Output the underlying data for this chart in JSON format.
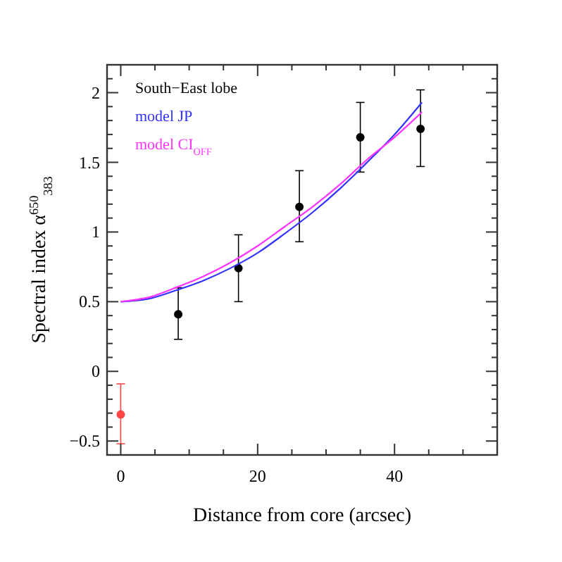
{
  "chart_data": {
    "type": "scatter",
    "xlabel": "Distance from core (arcsec)",
    "ylabel": "Spectral index α$^{650}$$_{383}$",
    "xlim": [
      -2,
      55
    ],
    "ylim": [
      -0.6,
      2.2
    ],
    "xticks": [
      0,
      {
        "value": 5,
        "label": null
      },
      {
        "value": 10,
        "label": null
      },
      {
        "value": 15,
        "label": null
      },
      20,
      {
        "value": 25,
        "label": null
      },
      {
        "value": 30,
        "label": null
      },
      {
        "value": 35,
        "label": null
      },
      40,
      {
        "value": 45,
        "label": null
      },
      {
        "value": 50,
        "label": null
      }
    ],
    "yticks": [
      -0.5,
      {
        "value": -0.4,
        "label": null
      },
      {
        "value": -0.3,
        "label": null
      },
      {
        "value": -0.2,
        "label": null
      },
      {
        "value": -0.1,
        "label": null
      },
      0,
      {
        "value": 0.1,
        "label": null
      },
      {
        "value": 0.2,
        "label": null
      },
      {
        "value": 0.3,
        "label": null
      },
      {
        "value": 0.4,
        "label": null
      },
      0.5,
      {
        "value": 0.6,
        "label": null
      },
      {
        "value": 0.7,
        "label": null
      },
      {
        "value": 0.8,
        "label": null
      },
      {
        "value": 0.9,
        "label": null
      },
      1,
      {
        "value": 1.1,
        "label": null
      },
      {
        "value": 1.2,
        "label": null
      },
      {
        "value": 1.3,
        "label": null
      },
      {
        "value": 1.4,
        "label": null
      },
      1.5,
      {
        "value": 1.6,
        "label": null
      },
      {
        "value": 1.7,
        "label": null
      },
      {
        "value": 1.8,
        "label": null
      },
      {
        "value": 1.9,
        "label": null
      },
      2,
      {
        "value": 2.1,
        "label": null
      }
    ],
    "legend": "top left",
    "grid": false,
    "series": [
      {
        "name": "South−East lobe",
        "color": "#000000",
        "marker": "circle",
        "x": [
          8.4,
          17.2,
          26.1,
          35,
          43.8
        ],
        "values": [
          0.41,
          0.74,
          1.18,
          1.68,
          1.74
        ],
        "errors": [
          [
            0.23,
            0.6
          ],
          [
            0.5,
            0.98
          ],
          [
            0.93,
            1.44
          ],
          [
            1.43,
            1.93
          ],
          [
            1.47,
            2.02
          ]
        ]
      },
      {
        "name": "model JP",
        "type": "line",
        "color": "#3333ff",
        "marker": "none",
        "x": [
          0,
          4,
          8,
          12,
          16,
          20,
          24,
          28,
          32,
          36,
          40,
          44
        ],
        "values": [
          0.5,
          0.52,
          0.58,
          0.65,
          0.74,
          0.85,
          0.99,
          1.14,
          1.31,
          1.5,
          1.7,
          1.93
        ]
      },
      {
        "name": "model CI$_{OFF}$",
        "type": "line",
        "color": "#ff33ff",
        "marker": "none",
        "x": [
          0,
          4,
          8,
          12,
          16,
          20,
          24,
          28,
          32,
          36,
          40,
          44
        ],
        "values": [
          0.5,
          0.53,
          0.6,
          0.68,
          0.78,
          0.9,
          1.04,
          1.18,
          1.34,
          1.52,
          1.68,
          1.86
        ]
      },
      {
        "color": "#ff4444",
        "marker": "circle",
        "x": [
          0
        ],
        "values": [
          -0.31
        ],
        "errors": [
          [
            -0.52,
            -0.09
          ]
        ]
      }
    ]
  }
}
